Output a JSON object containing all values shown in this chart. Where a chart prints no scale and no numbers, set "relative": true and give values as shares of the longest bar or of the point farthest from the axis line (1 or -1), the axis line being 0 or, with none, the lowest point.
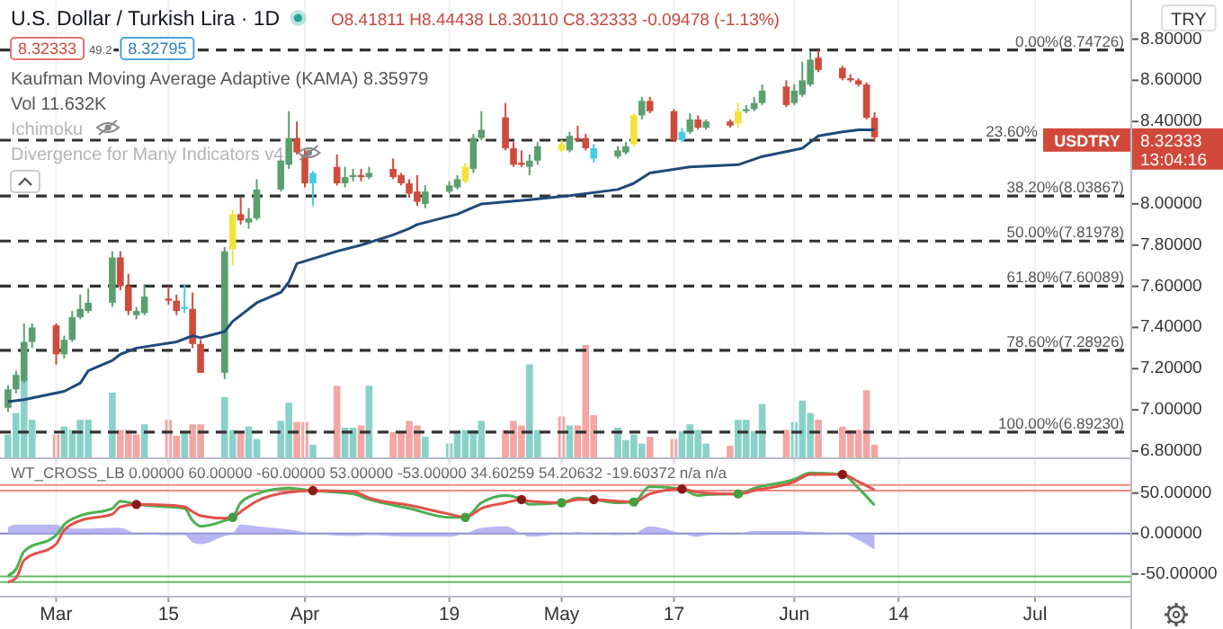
{
  "chart_data": [
    {
      "type": "candlestick",
      "title": "U.S. Dollar / Turkish Lira · 1D",
      "x": [
        "--02-23",
        "--02-24",
        "--02-25",
        "--02-26",
        "--03-01",
        "--03-02",
        "--03-03",
        "--03-04",
        "--03-05",
        "--03-08",
        "--03-09",
        "--03-10",
        "--03-11",
        "--03-12",
        "--03-15",
        "--03-16",
        "--03-17",
        "--03-18",
        "--03-19",
        "--03-22",
        "--03-23",
        "--03-24",
        "--03-25",
        "--03-26",
        "--03-29",
        "--03-30",
        "--03-31",
        "--04-01",
        "--04-02",
        "--04-05",
        "--04-06",
        "--04-07",
        "--04-08",
        "--04-09",
        "--04-12",
        "--04-13",
        "--04-14",
        "--04-15",
        "--04-16",
        "--04-19",
        "--04-20",
        "--04-21",
        "--04-22",
        "--04-23",
        "--04-26",
        "--04-27",
        "--04-28",
        "--04-29",
        "--04-30",
        "--05-03",
        "--05-04",
        "--05-05",
        "--05-06",
        "--05-07",
        "--05-10",
        "--05-11",
        "--05-12",
        "--05-13",
        "--05-14",
        "--05-17",
        "--05-18",
        "--05-19",
        "--05-20",
        "--05-21",
        "--05-24",
        "--05-25",
        "--05-26",
        "--05-27",
        "--05-28",
        "--05-31",
        "--06-01",
        "--06-02",
        "--06-03",
        "--06-04",
        "--06-07",
        "--06-08",
        "--06-09",
        "--06-10",
        "--06-11"
      ],
      "ohlc": [
        [
          7.01,
          7.12,
          6.99,
          7.1
        ],
        [
          7.1,
          7.19,
          7.08,
          7.17
        ],
        [
          7.14,
          7.42,
          7.13,
          7.33
        ],
        [
          7.33,
          7.42,
          7.3,
          7.4
        ],
        [
          7.41,
          7.42,
          7.22,
          7.27
        ],
        [
          7.27,
          7.36,
          7.25,
          7.34
        ],
        [
          7.34,
          7.48,
          7.33,
          7.45
        ],
        [
          7.45,
          7.56,
          7.44,
          7.49
        ],
        [
          7.48,
          7.59,
          7.47,
          7.52
        ],
        [
          7.52,
          7.77,
          7.5,
          7.74
        ],
        [
          7.74,
          7.77,
          7.58,
          7.6
        ],
        [
          7.6,
          7.66,
          7.46,
          7.48
        ],
        [
          7.46,
          7.5,
          7.44,
          7.48
        ],
        [
          7.47,
          7.61,
          7.46,
          7.55
        ],
        [
          7.54,
          7.6,
          7.51,
          7.53
        ],
        [
          7.53,
          7.56,
          7.46,
          7.48
        ],
        [
          7.49,
          7.61,
          7.47,
          7.5
        ],
        [
          7.49,
          7.57,
          7.3,
          7.32
        ],
        [
          7.32,
          7.34,
          7.18,
          7.18
        ],
        [
          7.18,
          7.79,
          7.15,
          7.77
        ],
        [
          7.78,
          7.97,
          7.7,
          7.95
        ],
        [
          7.95,
          8.03,
          7.9,
          7.92
        ],
        [
          7.91,
          7.98,
          7.88,
          7.93
        ],
        [
          7.93,
          8.12,
          7.92,
          8.07
        ],
        [
          8.07,
          8.22,
          8.06,
          8.21
        ],
        [
          8.19,
          8.45,
          8.17,
          8.32
        ],
        [
          8.32,
          8.4,
          8.24,
          8.25
        ],
        [
          8.24,
          8.27,
          8.08,
          8.1
        ],
        [
          8.1,
          8.16,
          7.99,
          8.15
        ],
        [
          8.18,
          8.24,
          8.09,
          8.1
        ],
        [
          8.1,
          8.18,
          8.08,
          8.13
        ],
        [
          8.13,
          8.17,
          8.11,
          8.14
        ],
        [
          8.14,
          8.17,
          8.11,
          8.13
        ],
        [
          8.13,
          8.18,
          8.12,
          8.15
        ],
        [
          8.17,
          8.22,
          8.12,
          8.13
        ],
        [
          8.14,
          8.15,
          8.09,
          8.1
        ],
        [
          8.1,
          8.12,
          8.03,
          8.05
        ],
        [
          8.06,
          8.14,
          7.99,
          8.01
        ],
        [
          8.0,
          8.09,
          7.98,
          8.06
        ],
        [
          8.06,
          8.11,
          8.05,
          8.09
        ],
        [
          8.08,
          8.14,
          8.07,
          8.12
        ],
        [
          8.11,
          8.2,
          8.1,
          8.18
        ],
        [
          8.17,
          8.34,
          8.15,
          8.32
        ],
        [
          8.32,
          8.45,
          8.31,
          8.36
        ],
        [
          8.42,
          8.49,
          8.26,
          8.27
        ],
        [
          8.27,
          8.3,
          8.18,
          8.19
        ],
        [
          8.2,
          8.26,
          8.18,
          8.19
        ],
        [
          8.18,
          8.24,
          8.14,
          8.21
        ],
        [
          8.21,
          8.3,
          8.19,
          8.28
        ],
        [
          8.26,
          8.31,
          8.25,
          8.29
        ],
        [
          8.26,
          8.35,
          8.25,
          8.33
        ],
        [
          8.32,
          8.38,
          8.3,
          8.31
        ],
        [
          8.32,
          8.34,
          8.26,
          8.27
        ],
        [
          8.22,
          8.29,
          8.2,
          8.27
        ],
        [
          8.23,
          8.28,
          8.22,
          8.26
        ],
        [
          8.25,
          8.3,
          8.24,
          8.28
        ],
        [
          8.29,
          8.44,
          8.28,
          8.43
        ],
        [
          8.43,
          8.52,
          8.41,
          8.5
        ],
        [
          8.5,
          8.52,
          8.44,
          8.45
        ],
        [
          8.45,
          8.46,
          8.3,
          8.31
        ],
        [
          8.31,
          8.37,
          8.3,
          8.35
        ],
        [
          8.35,
          8.44,
          8.34,
          8.41
        ],
        [
          8.41,
          8.43,
          8.36,
          8.37
        ],
        [
          8.37,
          8.41,
          8.36,
          8.4
        ],
        [
          8.4,
          8.41,
          8.37,
          8.38
        ],
        [
          8.39,
          8.49,
          8.37,
          8.45
        ],
        [
          8.45,
          8.48,
          8.44,
          8.46
        ],
        [
          8.46,
          8.52,
          8.45,
          8.49
        ],
        [
          8.49,
          8.58,
          8.48,
          8.55
        ],
        [
          8.57,
          8.6,
          8.47,
          8.48
        ],
        [
          8.49,
          8.58,
          8.48,
          8.55
        ],
        [
          8.53,
          8.69,
          8.52,
          8.6
        ],
        [
          8.58,
          8.74,
          8.57,
          8.7
        ],
        [
          8.71,
          8.74726,
          8.64,
          8.65
        ],
        [
          8.66,
          8.67,
          8.6,
          8.61
        ],
        [
          8.61,
          8.63,
          8.59,
          8.6
        ],
        [
          8.6,
          8.61,
          8.57,
          8.58
        ],
        [
          8.58,
          8.59,
          8.41,
          8.41811
        ],
        [
          8.41811,
          8.44438,
          8.3011,
          8.32333
        ]
      ],
      "colors": [
        "#5b9f6f",
        "#5b9f6f",
        "#5b9f6f",
        "#5b9f6f",
        "#cf4b3c",
        "#5b9f6f",
        "#5b9f6f",
        "#5b9f6f",
        "#5b9f6f",
        "#5b9f6f",
        "#cf4b3c",
        "#cf4b3c",
        "#5b9f6f",
        "#5b9f6f",
        "#cf4b3c",
        "#cf4b3c",
        "#45cde6",
        "#cf4b3c",
        "#cf4b3c",
        "#5b9f6f",
        "#f2e33c",
        "#cf4b3c",
        "#5b9f6f",
        "#5b9f6f",
        "#5b9f6f",
        "#5b9f6f",
        "#cf4b3c",
        "#cf4b3c",
        "#45cde6",
        "#cf4b3c",
        "#5b9f6f",
        "#5b9f6f",
        "#cf4b3c",
        "#5b9f6f",
        "#cf4b3c",
        "#cf4b3c",
        "#cf4b3c",
        "#cf4b3c",
        "#5b9f6f",
        "#5b9f6f",
        "#5b9f6f",
        "#f2e33c",
        "#5b9f6f",
        "#5b9f6f",
        "#cf4b3c",
        "#cf4b3c",
        "#cf4b3c",
        "#5b9f6f",
        "#5b9f6f",
        "#f2e33c",
        "#5b9f6f",
        "#cf4b3c",
        "#cf4b3c",
        "#45cde6",
        "#5b9f6f",
        "#5b9f6f",
        "#f2e33c",
        "#5b9f6f",
        "#cf4b3c",
        "#cf4b3c",
        "#45cde6",
        "#5b9f6f",
        "#cf4b3c",
        "#5b9f6f",
        "#cf4b3c",
        "#f2e33c",
        "#5b9f6f",
        "#5b9f6f",
        "#5b9f6f",
        "#cf4b3c",
        "#5b9f6f",
        "#5b9f6f",
        "#5b9f6f",
        "#cf4b3c",
        "#cf4b3c",
        "#cf4b3c",
        "#cf4b3c",
        "#cf4b3c",
        "#cf4b3c"
      ],
      "series": [
        {
          "type": "line",
          "color": "#1e4a7a",
          "x": [
            "--02-23",
            "--02-25",
            "--03-02",
            "--03-04",
            "--03-05",
            "--03-08",
            "--03-09",
            "--03-11",
            "--03-16",
            "--03-18",
            "--03-19",
            "--03-22",
            "--03-23",
            "--03-26",
            "--03-29",
            "--03-30",
            "--03-31",
            "--04-05",
            "--04-08",
            "--04-12",
            "--04-14",
            "--04-15",
            "--04-20",
            "--04-23",
            "--04-29",
            "--05-04",
            "--05-10",
            "--05-12",
            "--05-14",
            "--05-19",
            "--05-25",
            "--05-28",
            "--06-02",
            "--06-03",
            "--06-04",
            "--06-07",
            "--06-09",
            "--06-11"
          ],
          "values": [
            7.04,
            7.05,
            7.09,
            7.13,
            7.19,
            7.24,
            7.27,
            7.3,
            7.33,
            7.36,
            7.35,
            7.38,
            7.43,
            7.52,
            7.57,
            7.62,
            7.71,
            7.77,
            7.8,
            7.85,
            7.88,
            7.9,
            7.95,
            8.0,
            8.02,
            8.04,
            8.07,
            8.1,
            8.15,
            8.18,
            8.19,
            8.23,
            8.27,
            8.3,
            8.33,
            8.35,
            8.36,
            8.36
          ]
        }
      ],
      "xlim": [
        "--02-22",
        "--07-13"
      ],
      "xticks": [
        {
          "value": "--03-01",
          "label": null
        },
        {
          "value": "--03-15",
          "label": null
        },
        {
          "value": "--04-01",
          "label": null
        },
        {
          "value": "--04-19",
          "label": null
        },
        {
          "value": "--05-03",
          "label": null
        },
        {
          "value": "--05-17",
          "label": null
        },
        {
          "value": "--06-01",
          "label": null
        },
        {
          "value": "--06-14",
          "label": null
        },
        {
          "value": "--07-01",
          "label": null
        }
      ],
      "ylim": [
        6.765,
        8.99
      ],
      "yticks": [
        {
          "value": 6.8,
          "label": "6.80000"
        },
        {
          "value": 7.0,
          "label": "7.00000"
        },
        {
          "value": 7.2,
          "label": "7.20000"
        },
        {
          "value": 7.4,
          "label": "7.40000"
        },
        {
          "value": 7.6,
          "label": "7.60000"
        },
        {
          "value": 7.8,
          "label": "7.80000"
        },
        {
          "value": 8.0,
          "label": "8.00000"
        },
        {
          "value": 8.2,
          "label": null
        },
        {
          "value": 8.4,
          "label": "8.40000"
        },
        {
          "value": 8.6,
          "label": "8.60000"
        },
        {
          "value": 8.8,
          "label": "8.80000"
        }
      ],
      "tick_labels": "y",
      "grid": "x",
      "ref_lines": [
        {
          "axis": "y",
          "value": 8.74726,
          "label": "0.00%(8.74726)",
          "color": "#333333",
          "line_style": "dashed"
        },
        {
          "axis": "y",
          "value": 8.30949,
          "color": "#333333",
          "line_style": "dashed"
        },
        {
          "axis": "y",
          "value": 8.03867,
          "label": "38.20%(8.03867)",
          "color": "#333333",
          "line_style": "dashed"
        },
        {
          "axis": "y",
          "value": 7.81978,
          "label": "50.00%(7.81978)",
          "color": "#333333",
          "line_style": "dashed"
        },
        {
          "axis": "y",
          "value": 7.60089,
          "label": "61.80%(7.60089)",
          "color": "#333333",
          "line_style": "dashed"
        },
        {
          "axis": "y",
          "value": 7.28926,
          "label": "78.60%(7.28926)",
          "color": "#333333",
          "line_style": "dashed"
        },
        {
          "axis": "y",
          "value": 6.8923,
          "label": "100.00%(6.89230)",
          "color": "#333333",
          "line_style": "dashed"
        }
      ],
      "annotations": [
        "O8.41811 H8.44438 L8.30110 C8.32333 -0.09478 (-1.13%)",
        "8.32333",
        "49.2",
        "8.32795",
        "Kaufman Moving Average Adaptive (KAMA) 8.35979",
        "Vol 11.632K",
        "Ichimoku",
        "Divergence for Many Indicators v4",
        "TRY",
        "USDTRY",
        "8.32333",
        "13:04:16",
        {
          "text": "23.60%",
          "y": 8.30949
        }
      ]
    },
    {
      "type": "bar",
      "relative": true,
      "x": [
        "--02-23",
        "--02-24",
        "--02-25",
        "--02-26",
        "--03-01",
        "--03-02",
        "--03-03",
        "--03-04",
        "--03-05",
        "--03-08",
        "--03-09",
        "--03-10",
        "--03-11",
        "--03-12",
        "--03-15",
        "--03-16",
        "--03-17",
        "--03-18",
        "--03-19",
        "--03-22",
        "--03-23",
        "--03-24",
        "--03-25",
        "--03-26",
        "--03-29",
        "--03-30",
        "--03-31",
        "--04-01",
        "--04-02",
        "--04-05",
        "--04-06",
        "--04-07",
        "--04-08",
        "--04-09",
        "--04-12",
        "--04-13",
        "--04-14",
        "--04-15",
        "--04-16",
        "--04-19",
        "--04-20",
        "--04-21",
        "--04-22",
        "--04-23",
        "--04-26",
        "--04-27",
        "--04-28",
        "--04-29",
        "--04-30",
        "--05-03",
        "--05-04",
        "--05-05",
        "--05-06",
        "--05-07",
        "--05-10",
        "--05-11",
        "--05-12",
        "--05-13",
        "--05-14",
        "--05-17",
        "--05-18",
        "--05-19",
        "--05-20",
        "--05-21",
        "--05-24",
        "--05-25",
        "--05-26",
        "--05-27",
        "--05-28",
        "--05-31",
        "--06-01",
        "--06-02",
        "--06-03",
        "--06-04",
        "--06-07",
        "--06-08",
        "--06-09",
        "--06-10",
        "--06-11"
      ],
      "values": [
        0.21,
        0.4,
        0.71,
        0.34,
        0.21,
        0.28,
        0.25,
        0.34,
        0.34,
        0.58,
        0.25,
        0.25,
        0.21,
        0.3,
        0.34,
        0.2,
        0.23,
        0.3,
        0.3,
        0.54,
        0.25,
        0.24,
        0.28,
        0.17,
        0.33,
        0.49,
        0.32,
        0.32,
        0.12,
        0.64,
        0.27,
        0.27,
        0.29,
        0.64,
        0.23,
        0.23,
        0.33,
        0.29,
        0.19,
        0.13,
        0.24,
        0.25,
        0.25,
        0.33,
        0.25,
        0.33,
        0.29,
        0.83,
        0.25,
        0.37,
        0.29,
        0.29,
        1,
        0.38,
        0.27,
        0.16,
        0.21,
        0.13,
        0.19,
        0.17,
        0.24,
        0.3,
        0.25,
        0.13,
        0.11,
        0.34,
        0.34,
        0.24,
        0.48,
        0.25,
        0.32,
        0.51,
        0.4,
        0.34,
        0.28,
        0.25,
        0.25,
        0.6,
        0.12
      ],
      "colors": [
        "#8ad2c9",
        "#8ad2c9",
        "#8ad2c9",
        "#8ad2c9",
        "#f3a6a3",
        "#8ad2c9",
        "#8ad2c9",
        "#8ad2c9",
        "#8ad2c9",
        "#8ad2c9",
        "#f3a6a3",
        "#f3a6a3",
        "#f3a6a3",
        "#8ad2c9",
        "#f3a6a3",
        "#f3a6a3",
        "#8ad2c9",
        "#f3a6a3",
        "#f3a6a3",
        "#8ad2c9",
        "#8ad2c9",
        "#f3a6a3",
        "#8ad2c9",
        "#8ad2c9",
        "#8ad2c9",
        "#8ad2c9",
        "#f3a6a3",
        "#f3a6a3",
        "#8ad2c9",
        "#f3a6a3",
        "#8ad2c9",
        "#8ad2c9",
        "#f3a6a3",
        "#8ad2c9",
        "#f3a6a3",
        "#f3a6a3",
        "#f3a6a3",
        "#f3a6a3",
        "#8ad2c9",
        "#8ad2c9",
        "#8ad2c9",
        "#8ad2c9",
        "#8ad2c9",
        "#8ad2c9",
        "#f3a6a3",
        "#f3a6a3",
        "#f3a6a3",
        "#8ad2c9",
        "#8ad2c9",
        "#f3a6a3",
        "#8ad2c9",
        "#f3a6a3",
        "#f3a6a3",
        "#f3a6a3",
        "#8ad2c9",
        "#8ad2c9",
        "#8ad2c9",
        "#8ad2c9",
        "#f3a6a3",
        "#f3a6a3",
        "#8ad2c9",
        "#8ad2c9",
        "#8ad2c9",
        "#8ad2c9",
        "#f3a6a3",
        "#8ad2c9",
        "#8ad2c9",
        "#8ad2c9",
        "#8ad2c9",
        "#f3a6a3",
        "#8ad2c9",
        "#8ad2c9",
        "#8ad2c9",
        "#f3a6a3",
        "#f3a6a3",
        "#f3a6a3",
        "#f3a6a3",
        "#f3a6a3",
        "#f3a6a3"
      ],
      "xlim": [
        "--02-22",
        "--07-13"
      ]
    },
    {
      "type": "line",
      "series": [
        {
          "type": "area",
          "color": "#a9aaf0",
          "x": [
            "--02-23",
            "--02-24",
            "--02-25",
            "--03-01",
            "--03-02",
            "--03-04",
            "--03-08",
            "--03-09",
            "--03-11",
            "--03-15",
            "--03-17",
            "--03-18",
            "--03-19",
            "--03-22",
            "--03-23",
            "--03-24",
            "--03-26",
            "--03-30",
            "--04-02",
            "--04-07",
            "--04-09",
            "--04-14",
            "--04-19",
            "--04-21",
            "--04-23",
            "--04-26",
            "--04-28",
            "--04-29",
            "--05-03",
            "--05-05",
            "--05-07",
            "--05-10",
            "--05-12",
            "--05-14",
            "--05-18",
            "--05-20",
            "--05-21",
            "--05-25",
            "--05-27",
            "--06-01",
            "--06-03",
            "--06-07",
            "--06-09",
            "--06-11"
          ],
          "values": [
            8,
            11,
            11,
            11,
            7,
            6,
            7,
            7,
            0,
            -2,
            -2,
            -11,
            -13,
            -3,
            0,
            11,
            9,
            5,
            0,
            -3,
            -2,
            -4,
            -4,
            0,
            7,
            9,
            0,
            -4,
            0,
            2,
            0,
            -2,
            0,
            9,
            0,
            -4,
            -2,
            0,
            3,
            3,
            2,
            0,
            -8,
            -20
          ]
        },
        {
          "type": "line",
          "color": "#4caf50",
          "x": [
            "--02-23",
            "--02-24",
            "--02-25",
            "--03-01",
            "--03-02",
            "--03-04",
            "--03-08",
            "--03-09",
            "--03-11",
            "--03-15",
            "--03-17",
            "--03-18",
            "--03-19",
            "--03-22",
            "--03-23",
            "--03-24",
            "--03-26",
            "--03-30",
            "--04-02",
            "--04-07",
            "--04-09",
            "--04-14",
            "--04-19",
            "--04-21",
            "--04-23",
            "--04-26",
            "--04-28",
            "--04-29",
            "--05-03",
            "--05-05",
            "--05-07",
            "--05-10",
            "--05-12",
            "--05-14",
            "--05-18",
            "--05-20",
            "--05-21",
            "--05-25",
            "--05-27",
            "--06-01",
            "--06-03",
            "--06-07",
            "--06-09",
            "--06-11"
          ],
          "values": [
            -52,
            -44,
            -22,
            -2,
            11,
            22,
            31,
            40,
            36,
            33,
            31,
            16,
            9,
            16,
            20,
            38,
            49,
            56,
            53,
            49,
            42,
            31,
            20,
            20,
            38,
            47,
            42,
            36,
            38,
            44,
            42,
            38,
            39,
            58,
            55,
            47,
            48,
            49,
            56,
            67,
            75,
            73,
            56,
            35
          ]
        },
        {
          "type": "line",
          "color": "#e0524a",
          "x": [
            "--02-23",
            "--02-24",
            "--02-25",
            "--03-01",
            "--03-02",
            "--03-04",
            "--03-08",
            "--03-09",
            "--03-11",
            "--03-15",
            "--03-17",
            "--03-18",
            "--03-19",
            "--03-22",
            "--03-23",
            "--03-24",
            "--03-26",
            "--03-30",
            "--04-02",
            "--04-07",
            "--04-09",
            "--04-14",
            "--04-19",
            "--04-21",
            "--04-23",
            "--04-26",
            "--04-28",
            "--04-29",
            "--05-03",
            "--05-05",
            "--05-07",
            "--05-10",
            "--05-12",
            "--05-14",
            "--05-18",
            "--05-20",
            "--05-21",
            "--05-25",
            "--05-27",
            "--06-01",
            "--06-03",
            "--06-07",
            "--06-09",
            "--06-11"
          ],
          "values": [
            -60,
            -55,
            -33,
            -13,
            4,
            16,
            24,
            33,
            36,
            35,
            33,
            27,
            22,
            19,
            20,
            27,
            40,
            51,
            53,
            52,
            44,
            35,
            24,
            20,
            31,
            38,
            42,
            40,
            38,
            42,
            42,
            40,
            39,
            49,
            55,
            51,
            50,
            49,
            53,
            64,
            73,
            73,
            64,
            54
          ]
        },
        {
          "type": "scatter",
          "color": "#8b1a1a",
          "marker": "circle",
          "x": [
            "--03-11",
            "--04-02",
            "--04-28",
            "--05-07",
            "--05-18",
            "--06-07"
          ],
          "values": [
            36,
            53,
            42,
            42,
            55,
            73
          ]
        },
        {
          "type": "scatter",
          "color": "#3f9e3f",
          "marker": "circle",
          "x": [
            "--03-23",
            "--04-21",
            "--05-03",
            "--05-12",
            "--05-25"
          ],
          "values": [
            20,
            20,
            38,
            39,
            49
          ]
        }
      ],
      "xlim": [
        "--02-22",
        "--07-13"
      ],
      "xticks": [
        {
          "value": "--03-01",
          "label": "Mar"
        },
        {
          "value": "--03-15",
          "label": "15"
        },
        {
          "value": "--04-01",
          "label": "Apr"
        },
        {
          "value": "--04-19",
          "label": "19"
        },
        {
          "value": "--05-03",
          "label": "May"
        },
        {
          "value": "--05-17",
          "label": "17"
        },
        {
          "value": "--06-01",
          "label": "Jun"
        },
        {
          "value": "--06-14",
          "label": "14"
        },
        {
          "value": "--07-01",
          "label": "Jul"
        }
      ],
      "ylim": [
        -78,
        93
      ],
      "yticks": [
        {
          "value": 50,
          "label": "50.00000"
        },
        {
          "value": 0,
          "label": "0.00000"
        },
        {
          "value": -50,
          "label": "-50.00000"
        }
      ],
      "grid": "x",
      "ref_lines": [
        {
          "axis": "y",
          "value": 60,
          "color": "#f08a84"
        },
        {
          "axis": "y",
          "value": 53,
          "color": "#f08a84"
        },
        {
          "axis": "y",
          "value": 0,
          "color": "#7f86c6"
        },
        {
          "axis": "y",
          "value": -53,
          "color": "#66bb66"
        },
        {
          "axis": "y",
          "value": -60,
          "color": "#66bb66"
        }
      ],
      "annotations": [
        "WT_CROSS_LB 0.00000 60.00000 -60.00000 53.00000 -53.00000 34.60259 54.20632 -19.60372 n/a n/a"
      ]
    }
  ]
}
